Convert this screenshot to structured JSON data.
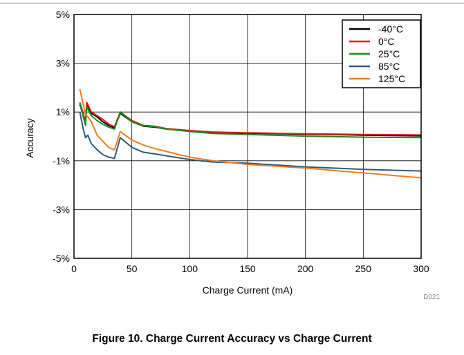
{
  "chart_data": {
    "type": "line",
    "xlabel": "Charge Current (mA)",
    "ylabel": "Accuracy",
    "xlim": [
      0,
      300
    ],
    "ylim": [
      -5,
      5
    ],
    "x_ticks": [
      0,
      50,
      100,
      150,
      200,
      250,
      300
    ],
    "y_ticks": [
      5,
      3,
      1,
      -1,
      -3,
      -5
    ],
    "x_tick_labels": [
      "0",
      "50",
      "100",
      "150",
      "200",
      "250",
      "300"
    ],
    "y_tick_labels": [
      "5%",
      "3%",
      "1%",
      "-1%",
      "-3%",
      "-5%"
    ],
    "grid": true,
    "legend_position": "top-right",
    "figure_code": "D021",
    "series": [
      {
        "name": "-40°C",
        "color": "#000000",
        "points": [
          [
            5,
            1.3
          ],
          [
            8,
            0.9
          ],
          [
            10,
            0.5
          ],
          [
            11,
            1.35
          ],
          [
            15,
            0.95
          ],
          [
            20,
            0.8
          ],
          [
            25,
            0.6
          ],
          [
            30,
            0.45
          ],
          [
            35,
            0.35
          ],
          [
            40,
            0.95
          ],
          [
            50,
            0.6
          ],
          [
            60,
            0.42
          ],
          [
            70,
            0.38
          ],
          [
            80,
            0.3
          ],
          [
            100,
            0.22
          ],
          [
            120,
            0.16
          ],
          [
            150,
            0.13
          ],
          [
            200,
            0.09
          ],
          [
            250,
            0.05
          ],
          [
            300,
            0.02
          ]
        ]
      },
      {
        "name": "0°C",
        "color": "#dc1f1f",
        "points": [
          [
            5,
            1.4
          ],
          [
            8,
            0.95
          ],
          [
            10,
            0.6
          ],
          [
            11,
            1.4
          ],
          [
            15,
            1.0
          ],
          [
            20,
            0.85
          ],
          [
            25,
            0.7
          ],
          [
            30,
            0.5
          ],
          [
            35,
            0.4
          ],
          [
            40,
            1.0
          ],
          [
            50,
            0.65
          ],
          [
            60,
            0.45
          ],
          [
            70,
            0.42
          ],
          [
            80,
            0.32
          ],
          [
            100,
            0.24
          ],
          [
            120,
            0.18
          ],
          [
            150,
            0.15
          ],
          [
            200,
            0.11
          ],
          [
            250,
            0.08
          ],
          [
            300,
            0.06
          ]
        ]
      },
      {
        "name": "25°C",
        "color": "#1a8c1a",
        "points": [
          [
            5,
            1.35
          ],
          [
            8,
            0.8
          ],
          [
            10,
            0.45
          ],
          [
            11,
            1.2
          ],
          [
            15,
            0.85
          ],
          [
            20,
            0.65
          ],
          [
            25,
            0.5
          ],
          [
            30,
            0.38
          ],
          [
            35,
            0.3
          ],
          [
            40,
            1.0
          ],
          [
            50,
            0.6
          ],
          [
            60,
            0.43
          ],
          [
            70,
            0.4
          ],
          [
            80,
            0.3
          ],
          [
            100,
            0.2
          ],
          [
            120,
            0.12
          ],
          [
            150,
            0.08
          ],
          [
            200,
            0.01
          ],
          [
            250,
            -0.03
          ],
          [
            300,
            -0.05
          ]
        ]
      },
      {
        "name": "85°C",
        "color": "#2c5a78",
        "points": [
          [
            5,
            1.0
          ],
          [
            8,
            0.3
          ],
          [
            10,
            -0.05
          ],
          [
            12,
            0.05
          ],
          [
            15,
            -0.3
          ],
          [
            20,
            -0.55
          ],
          [
            25,
            -0.75
          ],
          [
            30,
            -0.85
          ],
          [
            35,
            -0.9
          ],
          [
            40,
            -0.05
          ],
          [
            50,
            -0.45
          ],
          [
            60,
            -0.65
          ],
          [
            70,
            -0.72
          ],
          [
            80,
            -0.8
          ],
          [
            100,
            -0.95
          ],
          [
            120,
            -1.05
          ],
          [
            150,
            -1.1
          ],
          [
            200,
            -1.25
          ],
          [
            250,
            -1.35
          ],
          [
            300,
            -1.42
          ]
        ]
      },
      {
        "name": "125°C",
        "color": "#f07d1f",
        "points": [
          [
            5,
            1.95
          ],
          [
            8,
            1.3
          ],
          [
            10,
            0.9
          ],
          [
            12,
            0.8
          ],
          [
            15,
            0.6
          ],
          [
            20,
            0.05
          ],
          [
            25,
            -0.2
          ],
          [
            30,
            -0.45
          ],
          [
            35,
            -0.55
          ],
          [
            40,
            0.2
          ],
          [
            50,
            -0.15
          ],
          [
            60,
            -0.35
          ],
          [
            70,
            -0.5
          ],
          [
            80,
            -0.62
          ],
          [
            100,
            -0.85
          ],
          [
            120,
            -1.0
          ],
          [
            150,
            -1.15
          ],
          [
            200,
            -1.3
          ],
          [
            250,
            -1.5
          ],
          [
            300,
            -1.7
          ]
        ]
      }
    ]
  },
  "caption": "Figure 10. Charge Current Accuracy vs Charge Current"
}
